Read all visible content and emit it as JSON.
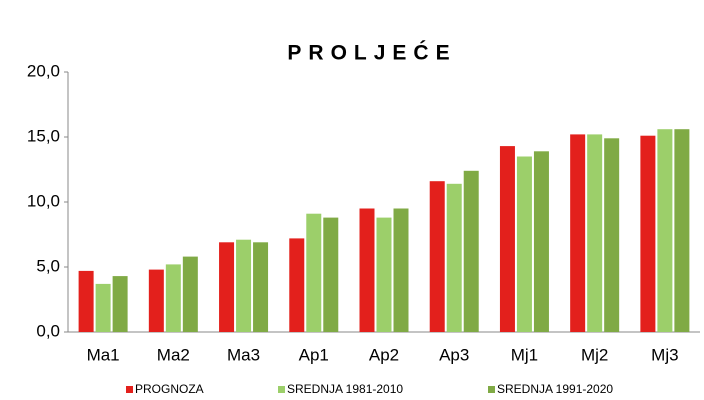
{
  "chart_data": {
    "type": "bar",
    "title": "PROLJEĆE",
    "categories": [
      "Ma1",
      "Ma2",
      "Ma3",
      "Ap1",
      "Ap2",
      "Ap3",
      "Mj1",
      "Mj2",
      "Mj3"
    ],
    "series": [
      {
        "name": "PROGNOZA",
        "color": "#e3201c",
        "values": [
          4.7,
          4.8,
          6.9,
          7.2,
          9.5,
          11.6,
          14.3,
          15.2,
          15.1
        ]
      },
      {
        "name": "SREDNJA 1981-2010",
        "color": "#9ccf6a",
        "values": [
          3.7,
          5.2,
          7.1,
          9.1,
          8.8,
          11.4,
          13.5,
          15.2,
          15.6
        ]
      },
      {
        "name": "SREDNJA 1991-2020",
        "color": "#80aa45",
        "values": [
          4.3,
          5.8,
          6.9,
          8.8,
          9.5,
          12.4,
          13.9,
          14.9,
          15.6
        ]
      }
    ],
    "ylim": [
      0,
      20
    ],
    "yticks": [
      {
        "value": 0,
        "label": "0,0"
      },
      {
        "value": 5,
        "label": "5,0"
      },
      {
        "value": 10,
        "label": "10,0"
      },
      {
        "value": 15,
        "label": "15,0"
      },
      {
        "value": 20,
        "label": "20,0"
      }
    ],
    "grid": false
  }
}
